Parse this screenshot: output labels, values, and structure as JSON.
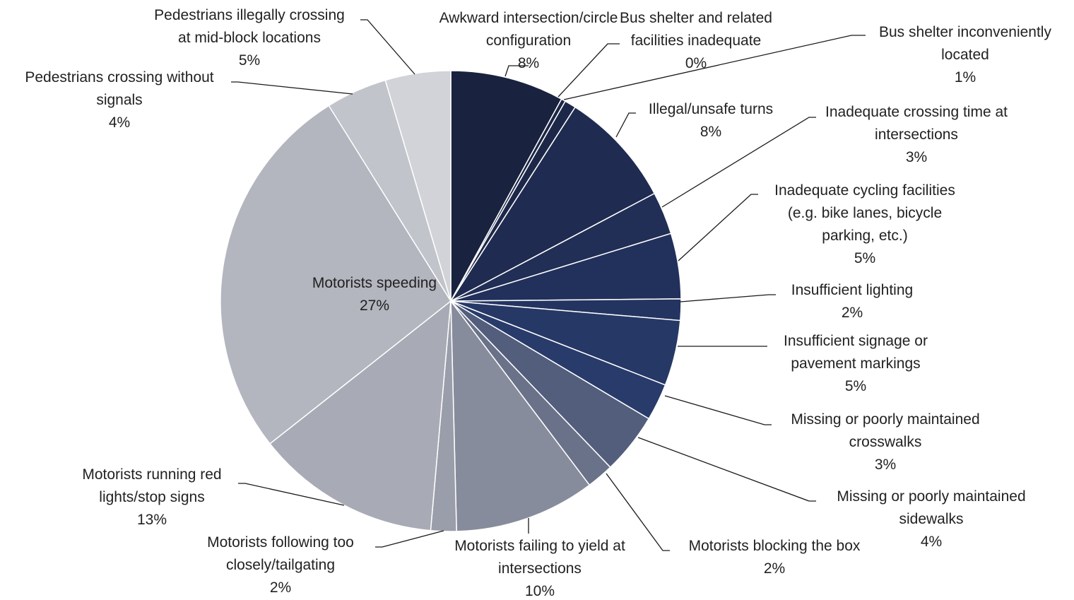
{
  "chart_data": {
    "type": "pie",
    "title": "",
    "start_angle_deg": 0,
    "direction": "clockwise",
    "slices": [
      {
        "label": "Awkward intersection/circle configuration",
        "value": 8,
        "display": "8%",
        "color": "#19233f"
      },
      {
        "label": "Bus shelter and related facilities inadequate",
        "value": 0.3,
        "display": "0%",
        "color": "#1b2645"
      },
      {
        "label": "Bus shelter inconveniently located",
        "value": 0.8,
        "display": "1%",
        "color": "#1d2849"
      },
      {
        "label": "Illegal/unsafe turns",
        "value": 8.2,
        "display": "8%",
        "color": "#1f2b50"
      },
      {
        "label": "Inadequate crossing time at intersections",
        "value": 3,
        "display": "3%",
        "color": "#212e55"
      },
      {
        "label": "Inadequate cycling facilities (e.g. bike lanes, bicycle parking, etc.)",
        "value": 4.6,
        "display": "5%",
        "color": "#22315b"
      },
      {
        "label": "Insufficient lighting",
        "value": 1.5,
        "display": "2%",
        "color": "#243460"
      },
      {
        "label": "Insufficient signage or pavement markings",
        "value": 4.6,
        "display": "5%",
        "color": "#263865"
      },
      {
        "label": "Missing or poorly maintained crosswalks",
        "value": 2.6,
        "display": "3%",
        "color": "#283b6b"
      },
      {
        "label": "Missing or poorly maintained sidewalks",
        "value": 4.3,
        "display": "4%",
        "color": "#535d7c"
      },
      {
        "label": "Motorists blocking the box",
        "value": 1.9,
        "display": "2%",
        "color": "#6a7289"
      },
      {
        "label": "Motorists failing to yield at intersections",
        "value": 9.9,
        "display": "10%",
        "color": "#878c9c"
      },
      {
        "label": "Motorists following too closely/tailgating",
        "value": 1.8,
        "display": "2%",
        "color": "#9a9eaa"
      },
      {
        "label": "Motorists running red lights/stop signs",
        "value": 13,
        "display": "13%",
        "color": "#a8aab5"
      },
      {
        "label": "Motorists speeding",
        "value": 26.8,
        "display": "27%",
        "color": "#b3b5bf"
      },
      {
        "label": "Pedestrians crossing without signals",
        "value": 4.3,
        "display": "4%",
        "color": "#c2c4cb"
      },
      {
        "label": "Pedestrians illegally crossing at mid-block locations",
        "value": 4.6,
        "display": "5%",
        "color": "#d2d3d8"
      }
    ]
  }
}
